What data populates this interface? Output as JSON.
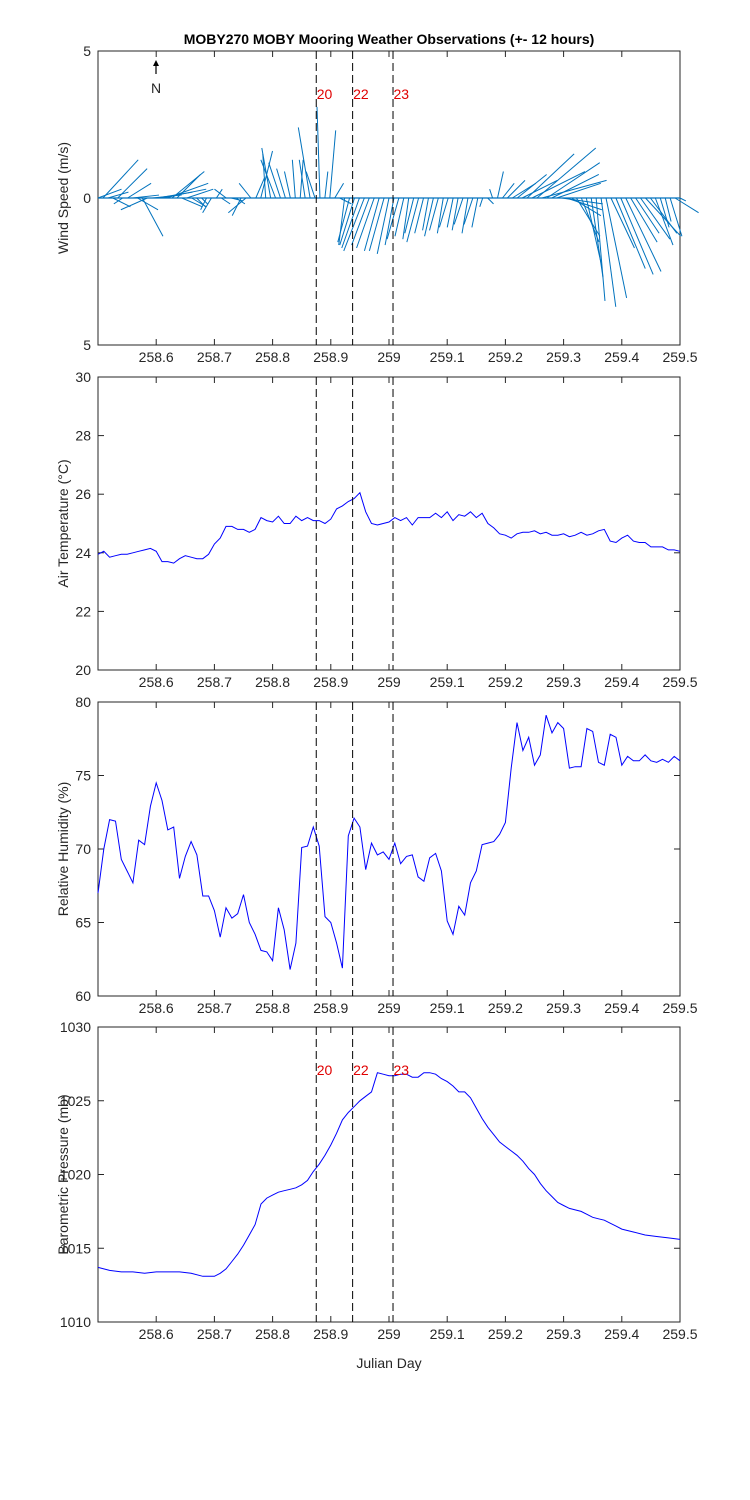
{
  "title": "MOBY270 MOBY Mooring Weather Observations (+- 12 hours)",
  "colors": {
    "line": "#0000ff",
    "barb": "#0072bd",
    "marker_text": "#e00000",
    "axis": "#262626",
    "event_line": "#000000"
  },
  "chart_data": [
    {
      "type": "line",
      "subtype": "wind-stick",
      "ylabel": "Wind Speed (m/s)",
      "ylim": [
        -5,
        5
      ],
      "yticks": [
        5,
        0,
        5
      ],
      "xlim": [
        258.5,
        259.5
      ],
      "xticks": [
        258.6,
        258.7,
        258.8,
        258.9,
        259,
        259.1,
        259.2,
        259.3,
        259.4,
        259.5
      ],
      "north_arrow_label": "N",
      "event_lines": [
        258.875,
        258.9375,
        259.0069
      ],
      "event_labels": [
        "20",
        "22",
        "23"
      ],
      "series": [
        {
          "u": [
            0.8,
            1.2,
            0.7,
            0.6,
            1.0,
            -0.3,
            0.8,
            0.9,
            0.7,
            0.7,
            -0.9,
            1.0,
            1.2,
            1.5,
            1.4,
            1.1,
            0.8,
            0.7,
            0.9,
            0.5,
            0.3,
            0.2,
            -0.2,
            -0.3,
            0.2,
            0.3,
            -0.4,
            0.4,
            0.3,
            -0.3,
            -0.6,
            -0.4,
            0.3,
            0.4,
            -0.1,
            -0.3,
            -0.5,
            -0.4,
            -0.3,
            -0.2,
            -0.1,
            0.1,
            -0.2,
            -0.4,
            -0.3,
            -0.1,
            0.1,
            0.2,
            0.3,
            0.4,
            -0.2,
            -0.4,
            -0.5,
            -0.6,
            -0.7,
            -0.6,
            -0.6,
            -0.5,
            -0.5,
            -0.4,
            -0.3,
            -0.4,
            -0.3,
            -0.2,
            -0.3,
            -0.4,
            -0.3,
            -0.2,
            -0.3,
            -0.3,
            -0.2,
            -0.3,
            -0.2,
            -0.2,
            -0.3,
            -0.2,
            -0.3,
            -0.2,
            -0.1,
            0.2,
            -0.1,
            0.2,
            0.4,
            0.6,
            0.8,
            1.0,
            1.2,
            1.6,
            1.8,
            2.0,
            2.2,
            1.8,
            1.6,
            1.5,
            1.4,
            1.2,
            1.0,
            0.8,
            0.6,
            0.5,
            0.4,
            0.3,
            0.5,
            0.7,
            0.8,
            1.0,
            1.1,
            1.2,
            0.9,
            0.8,
            1.0,
            1.2,
            0.9,
            0.6,
            0.3,
            0.2,
            0.4,
            0.8,
            0.2
          ],
          "v": [
            0.3,
            1.3,
            0.2,
            -0.3,
            1.0,
            -0.2,
            0.5,
            0.1,
            -0.4,
            -1.3,
            -0.4,
            0.1,
            0.2,
            0.3,
            0.5,
            0.9,
            0.8,
            -0.3,
            0.3,
            -0.3,
            -0.3,
            -0.2,
            -0.4,
            -0.5,
            0.3,
            -0.2,
            0.3,
            -0.1,
            -0.2,
            -0.6,
            -0.5,
            0.5,
            0.7,
            1.6,
            1.5,
            1.7,
            1.3,
            1.2,
            1.0,
            0.9,
            1.3,
            1.3,
            1.3,
            2.4,
            0.9,
            3.1,
            0.9,
            2.3,
            0.5,
            -0.2,
            -1.6,
            -1.5,
            -1.6,
            -1.7,
            -1.8,
            -1.6,
            -1.7,
            -1.8,
            -1.8,
            -1.9,
            -1.6,
            -1.4,
            -1.3,
            -1.4,
            -1.2,
            -1.5,
            -1.2,
            -1.1,
            -1.3,
            -1.1,
            -1.2,
            -1.0,
            -1.0,
            -1.1,
            -0.9,
            -1.2,
            -0.9,
            -1.0,
            -0.3,
            -0.2,
            0.3,
            0.9,
            0.5,
            0.6,
            0.5,
            0.8,
            0.6,
            1.5,
            0.9,
            1.7,
            0.6,
            1.2,
            0.8,
            0.5,
            -0.2,
            -0.4,
            -0.6,
            -1.3,
            -1.5,
            -2.2,
            -2.7,
            -3.5,
            -3.7,
            -3.4,
            -1.7,
            -2.4,
            -2.6,
            -2.5,
            -1.5,
            -1.2,
            -1.4,
            -1.3,
            -1.2,
            -1.6,
            -1.0,
            -0.8,
            -1.3,
            -0.5,
            -0.1
          ]
        }
      ]
    },
    {
      "type": "line",
      "ylabel": "Air Temperature (°C)",
      "ylim": [
        20,
        30
      ],
      "yticks": [
        20,
        22,
        24,
        26,
        28,
        30
      ],
      "xlim": [
        258.5,
        259.5
      ],
      "xticks": [
        258.6,
        258.7,
        258.8,
        258.9,
        259,
        259.1,
        259.2,
        259.3,
        259.4,
        259.5
      ],
      "event_lines": [
        258.875,
        258.9375,
        259.0069
      ],
      "series": [
        {
          "x": [
            258.5,
            258.51,
            258.52,
            258.53,
            258.54,
            258.55,
            258.56,
            258.57,
            258.58,
            258.59,
            258.6,
            258.61,
            258.62,
            258.63,
            258.64,
            258.65,
            258.66,
            258.67,
            258.68,
            258.69,
            258.7,
            258.71,
            258.72,
            258.73,
            258.74,
            258.75,
            258.76,
            258.77,
            258.78,
            258.79,
            258.8,
            258.81,
            258.82,
            258.83,
            258.84,
            258.85,
            258.86,
            258.87,
            258.88,
            258.89,
            258.9,
            258.91,
            258.92,
            258.93,
            258.94,
            258.95,
            258.96,
            258.97,
            258.98,
            258.99,
            259,
            259.01,
            259.02,
            259.03,
            259.04,
            259.05,
            259.06,
            259.07,
            259.08,
            259.09,
            259.1,
            259.11,
            259.12,
            259.13,
            259.14,
            259.15,
            259.16,
            259.17,
            259.18,
            259.19,
            259.2,
            259.21,
            259.22,
            259.23,
            259.24,
            259.25,
            259.26,
            259.27,
            259.28,
            259.29,
            259.3,
            259.31,
            259.32,
            259.33,
            259.34,
            259.35,
            259.36,
            259.37,
            259.38,
            259.39,
            259.4,
            259.41,
            259.42,
            259.43,
            259.44,
            259.45,
            259.46,
            259.47,
            259.48,
            259.49,
            259.5
          ],
          "y": [
            23.95,
            24.05,
            23.85,
            23.9,
            23.95,
            23.95,
            24.0,
            24.05,
            24.1,
            24.15,
            24.05,
            23.7,
            23.7,
            23.65,
            23.8,
            23.9,
            23.85,
            23.8,
            23.8,
            23.95,
            24.3,
            24.5,
            24.9,
            24.9,
            24.8,
            24.8,
            24.7,
            24.8,
            25.2,
            25.1,
            25.05,
            25.25,
            25.0,
            25.0,
            25.25,
            25.1,
            25.2,
            25.1,
            25.1,
            25.0,
            25.15,
            25.5,
            25.6,
            25.75,
            25.85,
            26.05,
            25.4,
            25.0,
            24.95,
            25.0,
            25.05,
            25.2,
            25.1,
            25.2,
            24.95,
            25.2,
            25.2,
            25.2,
            25.35,
            25.2,
            25.4,
            25.1,
            25.3,
            25.25,
            25.4,
            25.2,
            25.35,
            25.0,
            24.85,
            24.65,
            24.6,
            24.5,
            24.65,
            24.7,
            24.7,
            24.75,
            24.65,
            24.7,
            24.6,
            24.6,
            24.65,
            24.55,
            24.6,
            24.7,
            24.6,
            24.65,
            24.75,
            24.8,
            24.4,
            24.35,
            24.5,
            24.6,
            24.4,
            24.35,
            24.35,
            24.2,
            24.2,
            24.2,
            24.1,
            24.1,
            24.05
          ]
        }
      ]
    },
    {
      "type": "line",
      "ylabel": "Relative Humidity (%)",
      "ylim": [
        60,
        80
      ],
      "yticks": [
        60,
        65,
        70,
        75,
        80
      ],
      "xlim": [
        258.5,
        259.5
      ],
      "xticks": [
        258.6,
        258.7,
        258.8,
        258.9,
        259,
        259.1,
        259.2,
        259.3,
        259.4,
        259.5
      ],
      "event_lines": [
        258.875,
        258.9375,
        259.0069
      ],
      "series": [
        {
          "x": [
            258.5,
            258.51,
            258.52,
            258.53,
            258.54,
            258.55,
            258.56,
            258.57,
            258.58,
            258.59,
            258.6,
            258.61,
            258.62,
            258.63,
            258.64,
            258.65,
            258.66,
            258.67,
            258.68,
            258.69,
            258.7,
            258.71,
            258.72,
            258.73,
            258.74,
            258.75,
            258.76,
            258.77,
            258.78,
            258.79,
            258.8,
            258.81,
            258.82,
            258.83,
            258.84,
            258.85,
            258.86,
            258.87,
            258.88,
            258.89,
            258.9,
            258.91,
            258.92,
            258.93,
            258.94,
            258.95,
            258.96,
            258.97,
            258.98,
            258.99,
            259,
            259.01,
            259.02,
            259.03,
            259.04,
            259.05,
            259.06,
            259.07,
            259.08,
            259.09,
            259.1,
            259.11,
            259.12,
            259.13,
            259.14,
            259.15,
            259.16,
            259.17,
            259.18,
            259.19,
            259.2,
            259.21,
            259.22,
            259.23,
            259.24,
            259.25,
            259.26,
            259.27,
            259.28,
            259.29,
            259.3,
            259.31,
            259.32,
            259.33,
            259.34,
            259.35,
            259.36,
            259.37,
            259.38,
            259.39,
            259.4,
            259.41,
            259.42,
            259.43,
            259.44,
            259.45,
            259.46,
            259.47,
            259.48,
            259.49,
            259.5
          ],
          "y": [
            67.0,
            70.0,
            72.0,
            71.9,
            69.3,
            68.5,
            67.7,
            70.6,
            70.3,
            72.9,
            74.5,
            73.3,
            71.3,
            71.5,
            68.0,
            69.5,
            70.5,
            69.6,
            66.8,
            66.8,
            65.8,
            64.0,
            66.0,
            65.3,
            65.6,
            66.9,
            65.0,
            64.2,
            63.1,
            63.0,
            62.4,
            66.0,
            64.5,
            61.8,
            63.6,
            70.1,
            70.2,
            71.5,
            70.2,
            65.4,
            65.0,
            63.6,
            61.9,
            70.9,
            72.1,
            71.5,
            68.6,
            70.4,
            69.6,
            69.8,
            69.3,
            70.4,
            69.0,
            69.5,
            69.6,
            68.1,
            67.8,
            69.4,
            69.7,
            68.5,
            65.1,
            64.2,
            66.1,
            65.5,
            67.7,
            68.5,
            70.3,
            70.4,
            70.5,
            71.0,
            71.8,
            75.5,
            78.6,
            76.7,
            77.6,
            75.7,
            76.4,
            79.1,
            77.9,
            78.6,
            78.2,
            75.5,
            75.6,
            75.6,
            78.2,
            78.0,
            75.9,
            75.7,
            77.8,
            77.6,
            75.7,
            76.3,
            76.0,
            76.0,
            76.4,
            76.0,
            75.9,
            76.1,
            75.9,
            76.3,
            76.0
          ]
        }
      ]
    },
    {
      "type": "line",
      "ylabel": "Barometric Pressure (mb)",
      "xlabel": "Julian Day",
      "ylim": [
        1010,
        1030
      ],
      "yticks": [
        1010,
        1015,
        1020,
        1025,
        1030
      ],
      "xlim": [
        258.5,
        259.5
      ],
      "xticks": [
        258.6,
        258.7,
        258.8,
        258.9,
        259,
        259.1,
        259.2,
        259.3,
        259.4,
        259.5
      ],
      "event_lines": [
        258.875,
        258.9375,
        259.0069
      ],
      "event_labels": [
        "20",
        "22",
        "23"
      ],
      "series": [
        {
          "x": [
            258.5,
            258.52,
            258.54,
            258.56,
            258.58,
            258.6,
            258.62,
            258.64,
            258.66,
            258.68,
            258.7,
            258.71,
            258.72,
            258.73,
            258.74,
            258.75,
            258.76,
            258.77,
            258.78,
            258.79,
            258.8,
            258.81,
            258.82,
            258.83,
            258.84,
            258.85,
            258.86,
            258.87,
            258.88,
            258.89,
            258.9,
            258.91,
            258.92,
            258.93,
            258.94,
            258.95,
            258.96,
            258.97,
            258.98,
            258.99,
            259.0,
            259.01,
            259.02,
            259.03,
            259.04,
            259.05,
            259.06,
            259.07,
            259.08,
            259.09,
            259.1,
            259.11,
            259.12,
            259.13,
            259.14,
            259.15,
            259.16,
            259.17,
            259.18,
            259.19,
            259.2,
            259.21,
            259.22,
            259.23,
            259.24,
            259.25,
            259.26,
            259.27,
            259.28,
            259.29,
            259.3,
            259.31,
            259.32,
            259.33,
            259.34,
            259.35,
            259.36,
            259.37,
            259.38,
            259.39,
            259.4,
            259.42,
            259.44,
            259.46,
            259.48,
            259.5
          ],
          "y": [
            1013.7,
            1013.5,
            1013.4,
            1013.4,
            1013.3,
            1013.4,
            1013.4,
            1013.4,
            1013.3,
            1013.1,
            1013.1,
            1013.3,
            1013.6,
            1014.1,
            1014.6,
            1015.2,
            1015.9,
            1016.6,
            1018.0,
            1018.4,
            1018.6,
            1018.8,
            1018.9,
            1019.0,
            1019.1,
            1019.3,
            1019.6,
            1020.2,
            1020.7,
            1021.3,
            1022.0,
            1022.8,
            1023.7,
            1024.2,
            1024.6,
            1025.0,
            1025.3,
            1025.6,
            1026.9,
            1026.8,
            1026.7,
            1026.7,
            1026.8,
            1026.8,
            1026.6,
            1026.6,
            1026.9,
            1026.9,
            1026.8,
            1026.5,
            1026.3,
            1026.0,
            1025.6,
            1025.6,
            1025.2,
            1024.5,
            1023.8,
            1023.2,
            1022.7,
            1022.2,
            1021.9,
            1021.6,
            1021.3,
            1020.9,
            1020.4,
            1020.0,
            1019.4,
            1018.9,
            1018.5,
            1018.1,
            1017.9,
            1017.7,
            1017.6,
            1017.5,
            1017.3,
            1017.1,
            1017.0,
            1016.9,
            1016.7,
            1016.5,
            1016.3,
            1016.1,
            1015.9,
            1015.8,
            1015.7,
            1015.6
          ]
        }
      ]
    }
  ]
}
